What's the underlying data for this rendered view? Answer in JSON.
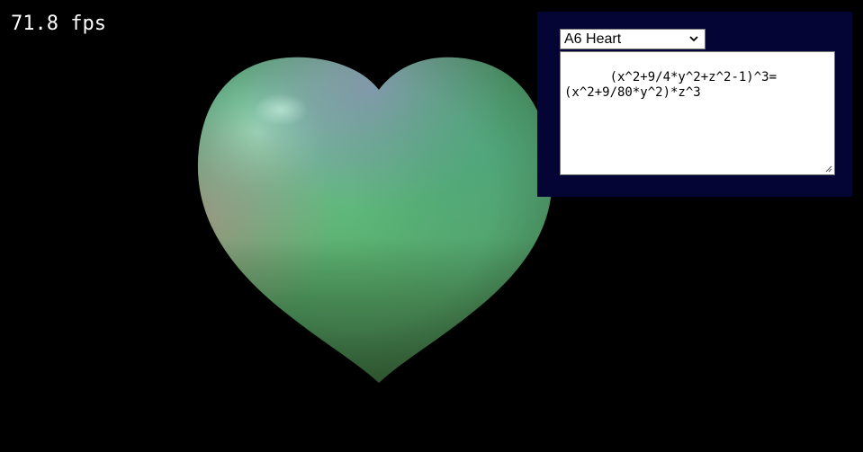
{
  "fps": {
    "label": "71.8 fps"
  },
  "panel": {
    "preset_select": {
      "selected": "A6 Heart"
    },
    "equation": {
      "value": "(x^2+9/4*y^2+z^2-1)^3=\n(x^2+9/80*y^2)*z^3"
    }
  },
  "render": {
    "shape": "heart"
  },
  "colors": {
    "background": "#000000",
    "panel_background": "#050535",
    "text": "#ffffff"
  },
  "icons": {
    "select_indicator": "chevron-down-icon",
    "resize": "resize-handle-icon"
  }
}
